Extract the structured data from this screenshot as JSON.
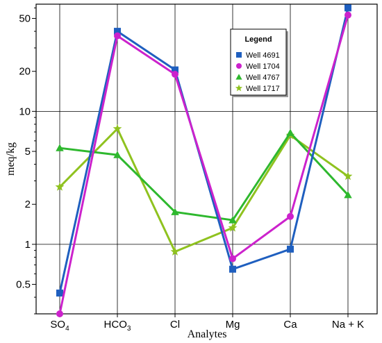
{
  "chart_data": {
    "type": "line",
    "xlabel": "Analytes",
    "ylabel": "meq/kg",
    "yscale": "log",
    "ylim": [
      0.3,
      64
    ],
    "yticks": [
      0.5,
      1,
      2,
      5,
      10,
      20,
      50
    ],
    "ytick_labels": [
      "0.5",
      "1",
      "2",
      "5",
      "10",
      "20",
      "50"
    ],
    "grid": true,
    "legend": {
      "title": "Legend",
      "placement": "top-right"
    },
    "categories": [
      {
        "base": "SO",
        "sub": "4"
      },
      {
        "base": "HCO",
        "sub": "3"
      },
      {
        "base": "Cl",
        "sub": ""
      },
      {
        "base": "Mg",
        "sub": ""
      },
      {
        "base": "Ca",
        "sub": ""
      },
      {
        "base": "Na + K",
        "sub": ""
      }
    ],
    "series": [
      {
        "name": "Well 4691",
        "color": "#1f5fbf",
        "marker": "square",
        "values": [
          0.43,
          40,
          20.5,
          0.65,
          0.92,
          60
        ]
      },
      {
        "name": "Well 1704",
        "color": "#cc22cc",
        "marker": "circle",
        "values": [
          0.3,
          37,
          19,
          0.78,
          1.62,
          53
        ]
      },
      {
        "name": "Well 4767",
        "color": "#2eb82e",
        "marker": "triangle",
        "values": [
          5.3,
          4.7,
          1.75,
          1.52,
          6.9,
          2.35
        ]
      },
      {
        "name": "Well 1717",
        "color": "#8fc21f",
        "marker": "star",
        "values": [
          2.7,
          7.4,
          0.88,
          1.33,
          6.6,
          3.25
        ]
      }
    ]
  }
}
